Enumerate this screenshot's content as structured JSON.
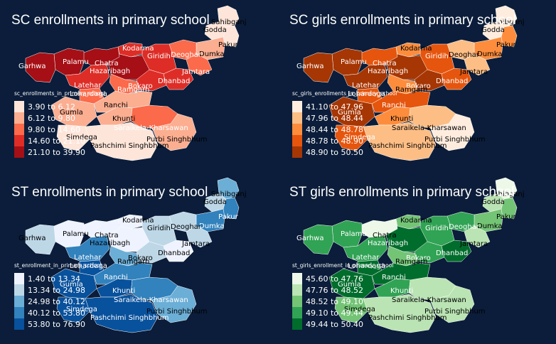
{
  "panels": [
    {
      "title": "SC enrollments in primary school",
      "legend_title": "sc_enrollments_in_primary_school",
      "colors": [
        "#fee5d9",
        "#fcae91",
        "#fb6a4a",
        "#de2d26",
        "#a50f15"
      ],
      "classes": [
        "3.90 to 6.12",
        "6.12 to 9.80",
        "9.80 to 14.60",
        "14.60 to 21.10",
        "21.10 to 39.90"
      ],
      "district_class": {
        "Garhwa": 4,
        "Palamu": 4,
        "Chatra": 4,
        "Latehar": 3,
        "Hazaribagh": 4,
        "Kodarma": 3,
        "Giridih": 3,
        "Deoghar": 2,
        "Dumka": 1,
        "Jamtara": 2,
        "Dhanbad": 3,
        "Bokaro": 3,
        "Ramgarh": 2,
        "Lohardaga": 2,
        "Gumla": 1,
        "Simdega": 0,
        "Ranchi": 1,
        "Khunti": 1,
        "Saraikela-Kharsawan": 2,
        "Purbi Singhbhum": 1,
        "Pashchimi Singhbhum": 0,
        "Pakur": 0,
        "Godda": 0,
        "Sahibganj": 0
      }
    },
    {
      "title": "SC girls enrollments in primary school",
      "legend_title": "sc_girls_enrollments_in_primary_school",
      "colors": [
        "#feedde",
        "#fdbe85",
        "#fd8d3c",
        "#e6550d",
        "#a63603"
      ],
      "classes": [
        "41.10 to 47.96",
        "47.96 to 48.44",
        "48.44 to 48.78",
        "48.78 to 48.90",
        "48.90 to 50.50"
      ],
      "district_class": {
        "Garhwa": 4,
        "Palamu": 4,
        "Chatra": 3,
        "Latehar": 4,
        "Hazaribagh": 4,
        "Kodarma": 2,
        "Giridih": 3,
        "Deoghar": 1,
        "Dumka": 2,
        "Jamtara": 1,
        "Dhanbad": 3,
        "Bokaro": 4,
        "Ramgarh": 2,
        "Lohardaga": 3,
        "Gumla": 4,
        "Simdega": 3,
        "Ranchi": 3,
        "Khunti": 2,
        "Saraikela-Kharsawan": 1,
        "Purbi Singhbhum": 0,
        "Pashchimi Singhbhum": 1,
        "Pakur": 2,
        "Godda": 0,
        "Sahibganj": 0
      }
    },
    {
      "title": "ST enrollments in primary school",
      "legend_title": "st_enrollment_in_primary_school",
      "colors": [
        "#eff3ff",
        "#bdd7e7",
        "#6baed6",
        "#3182bd",
        "#08519c"
      ],
      "classes": [
        "1.40 to 13.34",
        "13.34 to 24.98",
        "24.98 to 40.12",
        "40.12 to 53.80",
        "53.80 to 76.90"
      ],
      "district_class": {
        "Garhwa": 1,
        "Palamu": 0,
        "Chatra": 0,
        "Latehar": 3,
        "Hazaribagh": 0,
        "Kodarma": 0,
        "Giridih": 1,
        "Deoghar": 1,
        "Dumka": 3,
        "Jamtara": 1,
        "Dhanbad": 0,
        "Bokaro": 1,
        "Ramgarh": 2,
        "Lohardaga": 4,
        "Gumla": 4,
        "Simdega": 4,
        "Ranchi": 3,
        "Khunti": 4,
        "Saraikela-Kharsawan": 3,
        "Purbi Singhbhum": 2,
        "Pashchimi Singhbhum": 4,
        "Pakur": 3,
        "Godda": 1,
        "Sahibganj": 2
      }
    },
    {
      "title": "ST girls enrollments in primary school",
      "legend_title": "st_girls_enrollment_in_primary_school",
      "colors": [
        "#edf8e9",
        "#bae4b3",
        "#74c476",
        "#31a354",
        "#006d2c"
      ],
      "classes": [
        "45.60 to 47.76",
        "47.76 to 48.52",
        "48.52 to 49.10",
        "49.10 to 49.44",
        "49.44 to 50.40"
      ],
      "district_class": {
        "Garhwa": 3,
        "Palamu": 3,
        "Chatra": 0,
        "Latehar": 3,
        "Hazaribagh": 4,
        "Kodarma": 2,
        "Giridih": 3,
        "Deoghar": 3,
        "Dumka": 2,
        "Jamtara": 1,
        "Dhanbad": 4,
        "Bokaro": 3,
        "Ramgarh": 2,
        "Lohardaga": 4,
        "Gumla": 4,
        "Simdega": 2,
        "Ranchi": 4,
        "Khunti": 3,
        "Saraikela-Kharsawan": 1,
        "Purbi Singhbhum": 1,
        "Pashchimi Singhbhum": 1,
        "Pakur": 2,
        "Godda": 1,
        "Sahibganj": 0
      }
    }
  ],
  "district_labels": [
    "Sahibganj",
    "Godda",
    "Pakur",
    "Dumka",
    "Deoghar",
    "Kodarma",
    "Giridih",
    "Garhwa",
    "Palamu",
    "Chatra",
    "Hazaribagh",
    "Jamtara",
    "Dhanbad",
    "Bokaro",
    "Latehar",
    "Lohardaga",
    "Ramgarh",
    "Ranchi",
    "Gumla",
    "Khunti",
    "Saraikela-Kharsawan",
    "Simdega",
    "Purbi Singhbhum",
    "Pashchimi Singhbhum"
  ]
}
